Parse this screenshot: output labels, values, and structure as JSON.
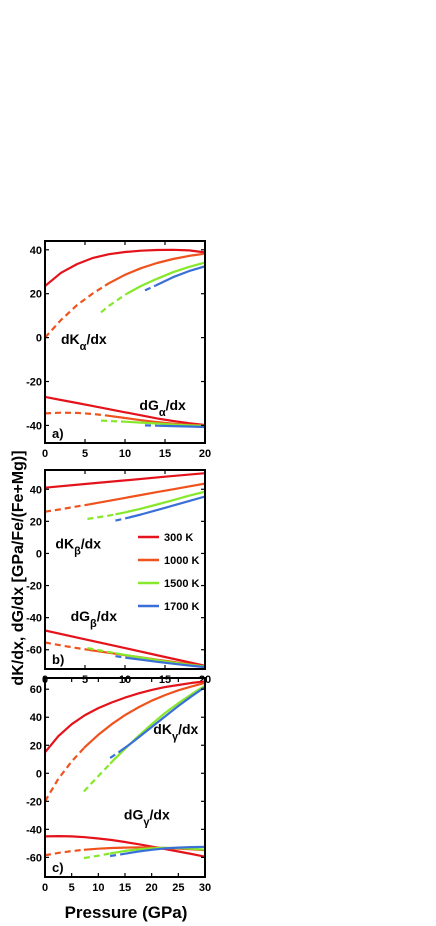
{
  "figure": {
    "ylabel": "dK/dx, dG/dx [GPa/Fe/(Fe+Mg)]",
    "xlabel": "Pressure (GPa)"
  },
  "colors": {
    "300 K": "#e4131b",
    "1000 K": "#f0521e",
    "1500 K": "#86e82a",
    "1700 K": "#3a6fd8"
  },
  "legend": {
    "entries": [
      "300 K",
      "1000 K",
      "1500 K",
      "1700 K"
    ],
    "placement": "panel b, right"
  },
  "chart_data": [
    {
      "type": "line",
      "panel_label": "a)",
      "xlim": [
        0,
        20
      ],
      "ylim": [
        -48,
        44
      ],
      "xticks": [
        0,
        5,
        10,
        15,
        20
      ],
      "yticks": [
        -40,
        -20,
        0,
        20,
        40
      ],
      "grid": false,
      "annotations": [
        {
          "id": "k",
          "base": "dK",
          "sub": "α",
          "tail": "/dx",
          "x": 2.0,
          "y": -3
        },
        {
          "id": "g",
          "base": "dG",
          "sub": "α",
          "tail": "/dx",
          "x": 11.8,
          "y": -33
        }
      ],
      "series": [
        {
          "name": "300 K",
          "group": "K",
          "solid_from": 0,
          "x": [
            0,
            2,
            4,
            6,
            8,
            10,
            12,
            14,
            16,
            18,
            20
          ],
          "y": [
            23.5,
            29.5,
            33.5,
            36.3,
            38.0,
            39.0,
            39.6,
            39.9,
            40.0,
            39.7,
            38.8
          ]
        },
        {
          "name": "1000 K",
          "group": "K",
          "solid_from": 7.5,
          "x": [
            0,
            2,
            4,
            6,
            8,
            10,
            12,
            14,
            16,
            18,
            20
          ],
          "y": [
            0,
            8.0,
            14.8,
            20.2,
            24.8,
            28.6,
            31.6,
            34.0,
            35.8,
            37.2,
            38.2
          ]
        },
        {
          "name": "1500 K",
          "group": "K",
          "solid_from": 10.2,
          "x": [
            7,
            8,
            10,
            12,
            14,
            16,
            18,
            20
          ],
          "y": [
            11.5,
            14.5,
            19.5,
            23.5,
            26.8,
            29.8,
            32.2,
            34.2
          ]
        },
        {
          "name": "1700 K",
          "group": "K",
          "solid_from": 13.8,
          "x": [
            12.5,
            14,
            16,
            18,
            20
          ],
          "y": [
            21.5,
            24.0,
            27.5,
            30.3,
            32.5
          ]
        },
        {
          "name": "300 K",
          "group": "G",
          "solid_from": 0,
          "x": [
            0,
            2,
            4,
            6,
            8,
            10,
            12,
            14,
            16,
            18,
            20
          ],
          "y": [
            -27.0,
            -28.4,
            -29.8,
            -31.2,
            -32.6,
            -34.0,
            -35.4,
            -36.8,
            -38.0,
            -39.0,
            -39.8
          ]
        },
        {
          "name": "1000 K",
          "group": "G",
          "solid_from": 7.5,
          "x": [
            0,
            2,
            4,
            6,
            8,
            10,
            12,
            14,
            16,
            18,
            20
          ],
          "y": [
            -34.5,
            -34.2,
            -34.3,
            -34.8,
            -35.6,
            -36.6,
            -37.6,
            -38.5,
            -39.2,
            -39.7,
            -40.0
          ]
        },
        {
          "name": "1500 K",
          "group": "G",
          "solid_from": 10.2,
          "x": [
            7,
            8,
            10,
            12,
            14,
            16,
            18,
            20
          ],
          "y": [
            -37.8,
            -38.0,
            -38.3,
            -38.7,
            -39.1,
            -39.6,
            -40.0,
            -40.3
          ]
        },
        {
          "name": "1700 K",
          "group": "G",
          "solid_from": 13.8,
          "x": [
            12.5,
            14,
            16,
            18,
            20
          ],
          "y": [
            -40.0,
            -40.1,
            -40.3,
            -40.5,
            -40.7
          ]
        }
      ]
    },
    {
      "type": "line",
      "panel_label": "b)",
      "xlim": [
        0,
        20
      ],
      "ylim": [
        -72,
        52
      ],
      "xticks": [
        0,
        5,
        10,
        15,
        20
      ],
      "yticks": [
        -60,
        -40,
        -20,
        0,
        20,
        40
      ],
      "grid": false,
      "annotations": [
        {
          "id": "k",
          "base": "dK",
          "sub": "β",
          "tail": "/dx",
          "x": 1.3,
          "y": 3
        },
        {
          "id": "g",
          "base": "dG",
          "sub": "β",
          "tail": "/dx",
          "x": 3.2,
          "y": -42
        }
      ],
      "series": [
        {
          "name": "300 K",
          "group": "K",
          "solid_from": 0,
          "x": [
            0,
            5,
            10,
            15,
            20
          ],
          "y": [
            41.0,
            43.3,
            45.5,
            47.8,
            50.0
          ]
        },
        {
          "name": "1000 K",
          "group": "K",
          "solid_from": 5.5,
          "x": [
            0,
            2,
            4,
            6,
            8,
            10,
            12,
            14,
            16,
            18,
            20
          ],
          "y": [
            26.0,
            27.6,
            29.3,
            31.0,
            32.8,
            34.6,
            36.4,
            38.2,
            40.0,
            41.8,
            43.5
          ]
        },
        {
          "name": "1500 K",
          "group": "K",
          "solid_from": 8.8,
          "x": [
            5.3,
            8,
            10,
            12,
            14,
            16,
            18,
            20
          ],
          "y": [
            21.5,
            23.6,
            25.6,
            27.9,
            30.5,
            33.2,
            36.0,
            38.5
          ]
        },
        {
          "name": "1700 K",
          "group": "K",
          "solid_from": 10.5,
          "x": [
            8.8,
            10,
            12,
            14,
            16,
            18,
            20
          ],
          "y": [
            20.5,
            21.8,
            24.3,
            27.0,
            29.8,
            32.6,
            35.5
          ]
        },
        {
          "name": "300 K",
          "group": "G",
          "solid_from": 0,
          "x": [
            0,
            5,
            10,
            15,
            20
          ],
          "y": [
            -48.0,
            -53.5,
            -59.0,
            -64.5,
            -70.0
          ]
        },
        {
          "name": "1000 K",
          "group": "G",
          "solid_from": 5.5,
          "x": [
            0,
            2,
            4,
            6,
            8,
            10,
            12,
            14,
            16,
            18,
            20
          ],
          "y": [
            -55.5,
            -57.3,
            -59.0,
            -60.5,
            -61.9,
            -63.4,
            -64.8,
            -66.2,
            -67.6,
            -69.0,
            -70.3
          ]
        },
        {
          "name": "1500 K",
          "group": "G",
          "solid_from": 8.8,
          "x": [
            5.3,
            8,
            10,
            12,
            14,
            16,
            18,
            20
          ],
          "y": [
            -59.0,
            -61.5,
            -63.2,
            -64.9,
            -66.5,
            -68.0,
            -69.3,
            -70.5
          ]
        },
        {
          "name": "1700 K",
          "group": "G",
          "solid_from": 10.5,
          "x": [
            8.8,
            10,
            12,
            14,
            16,
            18,
            20
          ],
          "y": [
            -64.0,
            -64.9,
            -66.2,
            -67.5,
            -68.7,
            -69.8,
            -70.8
          ]
        }
      ]
    },
    {
      "type": "line",
      "panel_label": "c)",
      "xlim": [
        0,
        30
      ],
      "ylim": [
        -74,
        68
      ],
      "xticks": [
        0,
        5,
        10,
        15,
        20,
        25,
        30
      ],
      "yticks": [
        -60,
        -40,
        -20,
        0,
        20,
        40,
        60
      ],
      "grid": false,
      "annotations": [
        {
          "id": "k",
          "base": "dK",
          "sub": "γ",
          "tail": "/dx",
          "x": 20.3,
          "y": 28
        },
        {
          "id": "g",
          "base": "dG",
          "sub": "γ",
          "tail": "/dx",
          "x": 14.8,
          "y": -33
        }
      ],
      "series": [
        {
          "name": "300 K",
          "group": "K",
          "solid_from": 0,
          "x": [
            0,
            2.5,
            5,
            7.5,
            10,
            12.5,
            15,
            17.5,
            20,
            22.5,
            25,
            27.5,
            30
          ],
          "y": [
            15.0,
            26.5,
            35.0,
            41.5,
            46.5,
            50.5,
            54.0,
            57.0,
            59.5,
            61.5,
            63.0,
            64.5,
            65.5
          ]
        },
        {
          "name": "1000 K",
          "group": "K",
          "solid_from": 7.3,
          "x": [
            0,
            2.5,
            5,
            7.5,
            10,
            12.5,
            15,
            17.5,
            20,
            22.5,
            25,
            27.5,
            30
          ],
          "y": [
            -20.0,
            -4.0,
            8.5,
            18.8,
            27.5,
            35.0,
            41.5,
            47.0,
            51.8,
            55.8,
            59.2,
            62.0,
            64.5
          ]
        },
        {
          "name": "1500 K",
          "group": "K",
          "solid_from": 12.2,
          "x": [
            7.3,
            9,
            11,
            13,
            15,
            17.5,
            20,
            22.5,
            25,
            27.5,
            30
          ],
          "y": [
            -13.0,
            -6.0,
            2.0,
            10.0,
            17.5,
            26.5,
            35.0,
            43.0,
            50.0,
            56.5,
            62.5
          ]
        },
        {
          "name": "1700 K",
          "group": "K",
          "solid_from": 14.2,
          "x": [
            12.2,
            14,
            16,
            18,
            20,
            22.5,
            25,
            27.5,
            30
          ],
          "y": [
            11.0,
            15.5,
            21.0,
            27.0,
            33.0,
            40.5,
            48.0,
            55.0,
            61.5
          ]
        },
        {
          "name": "300 K",
          "group": "G",
          "solid_from": 0,
          "x": [
            0,
            2.5,
            5,
            7.5,
            10,
            12.5,
            15,
            17.5,
            20,
            22.5,
            25,
            27.5,
            30
          ],
          "y": [
            -45.0,
            -44.8,
            -45.0,
            -45.6,
            -46.5,
            -47.6,
            -49.0,
            -50.6,
            -52.3,
            -54.0,
            -55.8,
            -57.6,
            -59.5
          ]
        },
        {
          "name": "1000 K",
          "group": "G",
          "solid_from": 7.3,
          "x": [
            0,
            2.5,
            5,
            7.5,
            10,
            12.5,
            15,
            17.5,
            20,
            22.5,
            25,
            27.5,
            30
          ],
          "y": [
            -58.5,
            -56.8,
            -55.5,
            -54.5,
            -53.8,
            -53.3,
            -53.0,
            -52.9,
            -53.0,
            -53.3,
            -53.7,
            -54.2,
            -54.8
          ]
        },
        {
          "name": "1500 K",
          "group": "G",
          "solid_from": 12.2,
          "x": [
            7.3,
            10,
            12.5,
            15,
            17.5,
            20,
            22.5,
            25,
            27.5,
            30
          ],
          "y": [
            -60.5,
            -58.8,
            -57.0,
            -55.4,
            -54.2,
            -53.5,
            -53.2,
            -53.3,
            -53.8,
            -54.5
          ]
        },
        {
          "name": "1700 K",
          "group": "G",
          "solid_from": 14.2,
          "x": [
            12.2,
            15,
            17.5,
            20,
            22.5,
            25,
            27.5,
            30
          ],
          "y": [
            -59.0,
            -57.4,
            -55.8,
            -54.6,
            -53.6,
            -53.0,
            -52.7,
            -52.5
          ]
        }
      ]
    }
  ]
}
